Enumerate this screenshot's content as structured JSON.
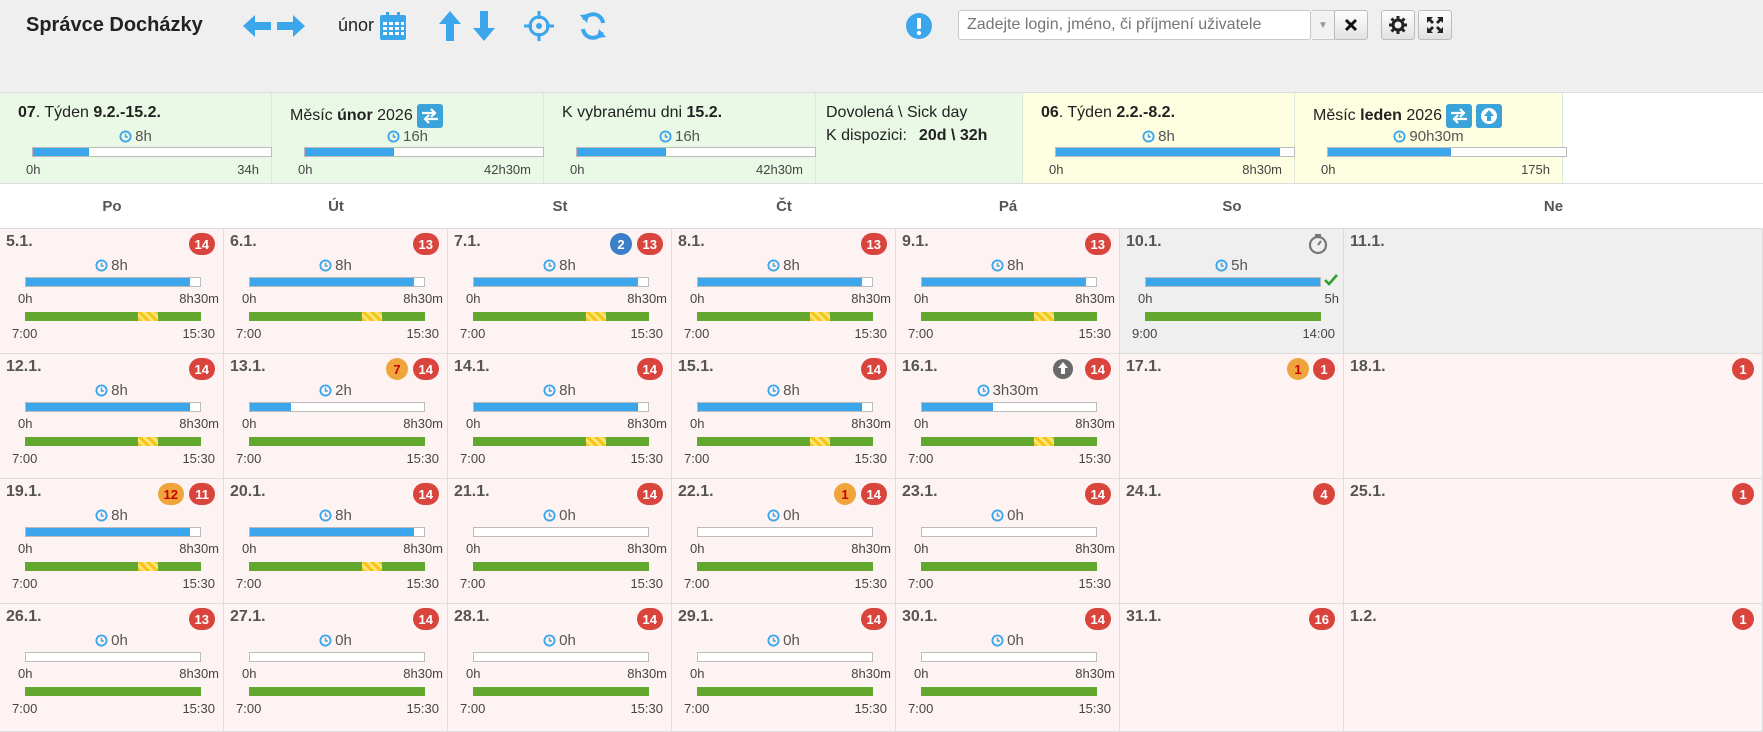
{
  "app": {
    "title": "Správce Docházky",
    "month": "únor"
  },
  "search": {
    "placeholder": "Zadejte login, jméno, či příjmení uživatele"
  },
  "colors": {
    "accent": "#3ba6ec",
    "work_bar": "#65a830",
    "badge_red": "#d9453d",
    "badge_orange": "#f0a53c",
    "badge_blue": "#3a7fc8"
  },
  "summary": [
    {
      "title_num": "07",
      "title_pre": ". Týden ",
      "title_bold": "9.2.-15.2.",
      "time": "8h",
      "lo": "0h",
      "hi": "34h",
      "fill": 0.235,
      "bg": "green"
    },
    {
      "title_num": "",
      "title_pre": "Měsíc ",
      "title_bold": "únor",
      "title_post": " 2026",
      "time": "16h",
      "lo": "0h",
      "hi": "42h30m",
      "fill": 0.376,
      "bg": "green",
      "swap": true
    },
    {
      "title_num": "",
      "title_pre": "K vybranému dni ",
      "title_bold": "15.2.",
      "time": "16h",
      "lo": "0h",
      "hi": "42h30m",
      "fill": 0.376,
      "bg": "green"
    },
    {
      "title_num": "",
      "title_pre": "Dovolená \\ Sick day",
      "line2_label": "K dispozici:",
      "line2_value": "20d \\ 32h",
      "bg": "green",
      "vac": true
    },
    {
      "title_num": "06",
      "title_pre": ". Týden ",
      "title_bold": "2.2.-8.2.",
      "time": "8h",
      "lo": "0h",
      "hi": "8h30m",
      "fill": 0.94,
      "bg": "yellow"
    },
    {
      "title_num": "",
      "title_pre": "Měsíc ",
      "title_bold": "leden",
      "title_post": " 2026",
      "time": "90h30m",
      "lo": "0h",
      "hi": "175h",
      "fill": 0.517,
      "bg": "yellow",
      "swap": true,
      "up": true
    }
  ],
  "days": [
    "Po",
    "Út",
    "St",
    "Čt",
    "Pá",
    "So",
    "Ne"
  ],
  "weeks": [
    [
      {
        "date": "5.1.",
        "type": "work",
        "badges": [
          {
            "t": "14",
            "c": "red"
          }
        ],
        "hours": "8h",
        "fill": 0.94,
        "lo": "0h",
        "hi": "8h30m",
        "brk": true,
        "tlo": "7:00",
        "thi": "15:30"
      },
      {
        "date": "6.1.",
        "type": "work",
        "badges": [
          {
            "t": "13",
            "c": "red"
          }
        ],
        "hours": "8h",
        "fill": 0.94,
        "lo": "0h",
        "hi": "8h30m",
        "brk": true,
        "tlo": "7:00",
        "thi": "15:30"
      },
      {
        "date": "7.1.",
        "type": "work",
        "badges": [
          {
            "t": "2",
            "c": "blue"
          },
          {
            "t": "13",
            "c": "red"
          }
        ],
        "hours": "8h",
        "fill": 0.94,
        "lo": "0h",
        "hi": "8h30m",
        "brk": true,
        "tlo": "7:00",
        "thi": "15:30"
      },
      {
        "date": "8.1.",
        "type": "work",
        "badges": [
          {
            "t": "13",
            "c": "red"
          }
        ],
        "hours": "8h",
        "fill": 0.94,
        "lo": "0h",
        "hi": "8h30m",
        "brk": true,
        "tlo": "7:00",
        "thi": "15:30"
      },
      {
        "date": "9.1.",
        "type": "work",
        "badges": [
          {
            "t": "13",
            "c": "red"
          }
        ],
        "hours": "8h",
        "fill": 0.94,
        "lo": "0h",
        "hi": "8h30m",
        "brk": true,
        "tlo": "7:00",
        "thi": "15:30"
      },
      {
        "date": "10.1.",
        "type": "grey",
        "badges": [],
        "timer": true,
        "hours": "5h",
        "fill": 1.0,
        "lo": "0h",
        "hi": "5h",
        "check": true,
        "brk": false,
        "tlo": "9:00",
        "thi": "14:00"
      },
      {
        "date": "11.1.",
        "type": "grey",
        "badges": []
      }
    ],
    [
      {
        "date": "12.1.",
        "type": "work",
        "badges": [
          {
            "t": "14",
            "c": "red"
          }
        ],
        "hours": "8h",
        "fill": 0.94,
        "lo": "0h",
        "hi": "8h30m",
        "brk": true,
        "tlo": "7:00",
        "thi": "15:30"
      },
      {
        "date": "13.1.",
        "type": "work",
        "badges": [
          {
            "t": "7",
            "c": "orange"
          },
          {
            "t": "14",
            "c": "red"
          }
        ],
        "hours": "2h",
        "fill": 0.235,
        "lo": "0h",
        "hi": "8h30m",
        "brk": false,
        "tlo": "7:00",
        "thi": "15:30"
      },
      {
        "date": "14.1.",
        "type": "work",
        "badges": [
          {
            "t": "14",
            "c": "red"
          }
        ],
        "hours": "8h",
        "fill": 0.94,
        "lo": "0h",
        "hi": "8h30m",
        "brk": true,
        "tlo": "7:00",
        "thi": "15:30"
      },
      {
        "date": "15.1.",
        "type": "work",
        "badges": [
          {
            "t": "14",
            "c": "red"
          }
        ],
        "hours": "8h",
        "fill": 0.94,
        "lo": "0h",
        "hi": "8h30m",
        "brk": true,
        "tlo": "7:00",
        "thi": "15:30"
      },
      {
        "date": "16.1.",
        "type": "work",
        "badges": [
          {
            "t": "14",
            "c": "red"
          }
        ],
        "upicon": true,
        "hours": "3h30m",
        "fill": 0.41,
        "lo": "0h",
        "hi": "8h30m",
        "brk": true,
        "tlo": "7:00",
        "thi": "15:30"
      },
      {
        "date": "17.1.",
        "type": "plain",
        "badges": [
          {
            "t": "1",
            "c": "orange"
          },
          {
            "t": "1",
            "c": "red"
          }
        ]
      },
      {
        "date": "18.1.",
        "type": "plain",
        "badges": [
          {
            "t": "1",
            "c": "red"
          }
        ]
      }
    ],
    [
      {
        "date": "19.1.",
        "type": "work",
        "badges": [
          {
            "t": "12",
            "c": "orange"
          },
          {
            "t": "11",
            "c": "red"
          }
        ],
        "hours": "8h",
        "fill": 0.94,
        "lo": "0h",
        "hi": "8h30m",
        "brk": true,
        "tlo": "7:00",
        "thi": "15:30"
      },
      {
        "date": "20.1.",
        "type": "work",
        "badges": [
          {
            "t": "14",
            "c": "red"
          }
        ],
        "hours": "8h",
        "fill": 0.94,
        "lo": "0h",
        "hi": "8h30m",
        "brk": true,
        "tlo": "7:00",
        "thi": "15:30"
      },
      {
        "date": "21.1.",
        "type": "work",
        "badges": [
          {
            "t": "14",
            "c": "red"
          }
        ],
        "hours": "0h",
        "fill": 0,
        "lo": "0h",
        "hi": "8h30m",
        "brk": false,
        "tlo": "7:00",
        "thi": "15:30"
      },
      {
        "date": "22.1.",
        "type": "work",
        "badges": [
          {
            "t": "1",
            "c": "orange"
          },
          {
            "t": "14",
            "c": "red"
          }
        ],
        "hours": "0h",
        "fill": 0,
        "lo": "0h",
        "hi": "8h30m",
        "brk": false,
        "tlo": "7:00",
        "thi": "15:30"
      },
      {
        "date": "23.1.",
        "type": "work",
        "badges": [
          {
            "t": "14",
            "c": "red"
          }
        ],
        "hours": "0h",
        "fill": 0,
        "lo": "0h",
        "hi": "8h30m",
        "brk": false,
        "tlo": "7:00",
        "thi": "15:30"
      },
      {
        "date": "24.1.",
        "type": "plain",
        "badges": [
          {
            "t": "4",
            "c": "red"
          }
        ]
      },
      {
        "date": "25.1.",
        "type": "plain",
        "badges": [
          {
            "t": "1",
            "c": "red"
          }
        ]
      }
    ],
    [
      {
        "date": "26.1.",
        "type": "work",
        "badges": [
          {
            "t": "13",
            "c": "red"
          }
        ],
        "hours": "0h",
        "fill": 0,
        "lo": "0h",
        "hi": "8h30m",
        "brk": false,
        "tlo": "7:00",
        "thi": "15:30"
      },
      {
        "date": "27.1.",
        "type": "work",
        "badges": [
          {
            "t": "14",
            "c": "red"
          }
        ],
        "hours": "0h",
        "fill": 0,
        "lo": "0h",
        "hi": "8h30m",
        "brk": false,
        "tlo": "7:00",
        "thi": "15:30"
      },
      {
        "date": "28.1.",
        "type": "work",
        "badges": [
          {
            "t": "14",
            "c": "red"
          }
        ],
        "hours": "0h",
        "fill": 0,
        "lo": "0h",
        "hi": "8h30m",
        "brk": false,
        "tlo": "7:00",
        "thi": "15:30"
      },
      {
        "date": "29.1.",
        "type": "work",
        "badges": [
          {
            "t": "14",
            "c": "red"
          }
        ],
        "hours": "0h",
        "fill": 0,
        "lo": "0h",
        "hi": "8h30m",
        "brk": false,
        "tlo": "7:00",
        "thi": "15:30"
      },
      {
        "date": "30.1.",
        "type": "work",
        "badges": [
          {
            "t": "14",
            "c": "red"
          }
        ],
        "hours": "0h",
        "fill": 0,
        "lo": "0h",
        "hi": "8h30m",
        "brk": false,
        "tlo": "7:00",
        "thi": "15:30"
      },
      {
        "date": "31.1.",
        "type": "plain",
        "badges": [
          {
            "t": "16",
            "c": "red"
          }
        ]
      },
      {
        "date": "1.2.",
        "type": "plain",
        "badges": [
          {
            "t": "1",
            "c": "red"
          }
        ]
      }
    ]
  ]
}
